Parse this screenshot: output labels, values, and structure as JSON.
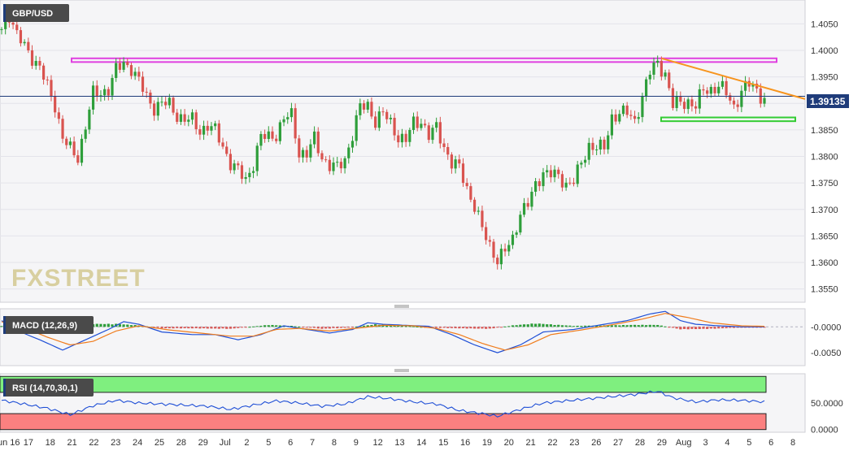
{
  "symbol": "GBP/USD",
  "last_price_label": "1.39135",
  "watermark": "FXSTREET",
  "colors": {
    "up": "#2e9e3a",
    "down": "#d9534f",
    "last_line": "#1f3c7a",
    "resistance_box": "#e040e0",
    "support_box": "#33cc33",
    "trendline": "#f7941d",
    "macd_line": "#1f4fd6",
    "signal_line": "#f07c1c",
    "rsi_line": "#1f4fd6",
    "rsi_overbought": "#7fef7f",
    "rsi_oversold": "#fb8080",
    "panel_bg": "#f5f5f7",
    "grid": "#e4e4ea"
  },
  "chart_data": [
    {
      "type": "candlestick",
      "title": "GBP/USD",
      "ylim": [
        1.3525,
        1.4095
      ],
      "y_ticks": [
        "1.4050",
        "1.4000",
        "1.3950",
        "1.3900",
        "1.3850",
        "1.3800",
        "1.3750",
        "1.3700",
        "1.3650",
        "1.3600",
        "1.3550"
      ],
      "x_ticks": [
        "Jun 16",
        "17",
        "18",
        "21",
        "22",
        "23",
        "24",
        "25",
        "28",
        "29",
        "Jul",
        "2",
        "5",
        "6",
        "7",
        "8",
        "9",
        "12",
        "13",
        "14",
        "15",
        "16",
        "19",
        "20",
        "21",
        "22",
        "23",
        "26",
        "27",
        "28",
        "29",
        "Aug",
        "3",
        "4",
        "5",
        "6",
        "8"
      ],
      "close_path": [
        [
          0,
          1.404
        ],
        [
          2,
          1.407
        ],
        [
          4,
          1.4025
        ],
        [
          6,
          1.4008
        ],
        [
          8,
          1.399
        ],
        [
          10,
          1.3965
        ],
        [
          12,
          1.393
        ],
        [
          14,
          1.39
        ],
        [
          16,
          1.3835
        ],
        [
          18,
          1.381
        ],
        [
          20,
          1.38
        ],
        [
          22,
          1.386
        ],
        [
          24,
          1.3915
        ],
        [
          26,
          1.392
        ],
        [
          28,
          1.393
        ],
        [
          30,
          1.396
        ],
        [
          32,
          1.3975
        ],
        [
          34,
          1.397
        ],
        [
          36,
          1.394
        ],
        [
          38,
          1.391
        ],
        [
          40,
          1.3895
        ],
        [
          42,
          1.39
        ],
        [
          44,
          1.3895
        ],
        [
          46,
          1.388
        ],
        [
          48,
          1.387
        ],
        [
          50,
          1.3865
        ],
        [
          52,
          1.385
        ],
        [
          54,
          1.386
        ],
        [
          56,
          1.3845
        ],
        [
          58,
          1.382
        ],
        [
          60,
          1.379
        ],
        [
          62,
          1.377
        ],
        [
          64,
          1.3755
        ],
        [
          66,
          1.379
        ],
        [
          68,
          1.3835
        ],
        [
          70,
          1.3835
        ],
        [
          72,
          1.3845
        ],
        [
          74,
          1.387
        ],
        [
          76,
          1.3875
        ],
        [
          78,
          1.381
        ],
        [
          80,
          1.3805
        ],
        [
          82,
          1.383
        ],
        [
          84,
          1.38
        ],
        [
          86,
          1.3785
        ],
        [
          88,
          1.3775
        ],
        [
          90,
          1.3795
        ],
        [
          92,
          1.3845
        ],
        [
          94,
          1.389
        ],
        [
          96,
          1.3895
        ],
        [
          98,
          1.387
        ],
        [
          100,
          1.388
        ],
        [
          102,
          1.386
        ],
        [
          104,
          1.384
        ],
        [
          106,
          1.383
        ],
        [
          108,
          1.386
        ],
        [
          110,
          1.387
        ],
        [
          112,
          1.384
        ],
        [
          114,
          1.385
        ],
        [
          116,
          1.382
        ],
        [
          118,
          1.379
        ],
        [
          120,
          1.3775
        ],
        [
          122,
          1.374
        ],
        [
          124,
          1.371
        ],
        [
          126,
          1.366
        ],
        [
          128,
          1.363
        ],
        [
          130,
          1.361
        ],
        [
          132,
          1.362
        ],
        [
          134,
          1.364
        ],
        [
          136,
          1.37
        ],
        [
          138,
          1.371
        ],
        [
          140,
          1.374
        ],
        [
          142,
          1.3775
        ],
        [
          144,
          1.377
        ],
        [
          146,
          1.3755
        ],
        [
          148,
          1.375
        ],
        [
          150,
          1.376
        ],
        [
          152,
          1.378
        ],
        [
          154,
          1.382
        ],
        [
          156,
          1.3825
        ],
        [
          158,
          1.381
        ],
        [
          160,
          1.387
        ],
        [
          162,
          1.389
        ],
        [
          164,
          1.388
        ],
        [
          166,
          1.386
        ],
        [
          168,
          1.392
        ],
        [
          170,
          1.396
        ],
        [
          172,
          1.397
        ],
        [
          174,
          1.396
        ],
        [
          176,
          1.39
        ],
        [
          178,
          1.3895
        ],
        [
          180,
          1.3905
        ],
        [
          182,
          1.39
        ],
        [
          184,
          1.392
        ],
        [
          186,
          1.3925
        ],
        [
          188,
          1.394
        ],
        [
          190,
          1.3915
        ],
        [
          192,
          1.389
        ],
        [
          194,
          1.393
        ],
        [
          196,
          1.3935
        ],
        [
          198,
          1.392
        ],
        [
          200,
          1.3913
        ]
      ],
      "last_price": 1.39135,
      "resistance_zone": [
        1.3978,
        1.3985
      ],
      "support_zone": [
        1.3868,
        1.3872
      ],
      "descending_trendline": [
        [
          173,
          1.3985
        ],
        [
          200,
          1.393
        ]
      ]
    },
    {
      "type": "line",
      "title": "MACD (12,26,9)",
      "ylim": [
        -0.0075,
        0.0035
      ],
      "y_ticks": [
        "-0.0000",
        "-0.0050"
      ],
      "series": [
        {
          "name": "MACD",
          "values": [
            [
              0,
              0.0012
            ],
            [
              5,
              -0.001
            ],
            [
              10,
              -0.0025
            ],
            [
              16,
              -0.0045
            ],
            [
              22,
              -0.0025
            ],
            [
              28,
              -0.0005
            ],
            [
              32,
              0.001
            ],
            [
              36,
              0.0005
            ],
            [
              42,
              -0.001
            ],
            [
              50,
              -0.0015
            ],
            [
              56,
              -0.0015
            ],
            [
              62,
              -0.0025
            ],
            [
              68,
              -0.0015
            ],
            [
              74,
              0.0002
            ],
            [
              80,
              -0.0005
            ],
            [
              86,
              -0.0012
            ],
            [
              92,
              -0.0005
            ],
            [
              96,
              0.0008
            ],
            [
              100,
              0.0005
            ],
            [
              106,
              0.0003
            ],
            [
              112,
              0.0001
            ],
            [
              118,
              -0.0015
            ],
            [
              124,
              -0.0035
            ],
            [
              130,
              -0.005
            ],
            [
              136,
              -0.0035
            ],
            [
              142,
              -0.001
            ],
            [
              150,
              -0.0005
            ],
            [
              158,
              0.0005
            ],
            [
              164,
              0.0012
            ],
            [
              170,
              0.0025
            ],
            [
              174,
              0.003
            ],
            [
              178,
              0.0012
            ],
            [
              182,
              0.0005
            ],
            [
              188,
              0.0002
            ],
            [
              194,
              0.0
            ],
            [
              200,
              0.0
            ]
          ]
        },
        {
          "name": "Signal",
          "values": [
            [
              0,
              0.001
            ],
            [
              6,
              -0.0002
            ],
            [
              12,
              -0.002
            ],
            [
              18,
              -0.0035
            ],
            [
              24,
              -0.0028
            ],
            [
              30,
              -0.0008
            ],
            [
              36,
              0.0002
            ],
            [
              44,
              -0.0006
            ],
            [
              52,
              -0.0012
            ],
            [
              60,
              -0.0018
            ],
            [
              66,
              -0.0018
            ],
            [
              72,
              -0.0005
            ],
            [
              78,
              -0.0003
            ],
            [
              86,
              -0.0008
            ],
            [
              94,
              -0.0002
            ],
            [
              100,
              0.0003
            ],
            [
              108,
              0.0002
            ],
            [
              114,
              -0.0003
            ],
            [
              120,
              -0.0015
            ],
            [
              126,
              -0.0032
            ],
            [
              132,
              -0.0045
            ],
            [
              138,
              -0.0035
            ],
            [
              144,
              -0.0015
            ],
            [
              152,
              -0.0006
            ],
            [
              160,
              0.0004
            ],
            [
              168,
              0.0015
            ],
            [
              174,
              0.0026
            ],
            [
              180,
              0.0018
            ],
            [
              186,
              0.0008
            ],
            [
              194,
              0.0002
            ],
            [
              200,
              0.0001
            ]
          ]
        }
      ],
      "histogram": [
        [
          0,
          0.0002
        ],
        [
          10,
          -0.0005
        ],
        [
          18,
          -0.0003
        ],
        [
          24,
          0.0006
        ],
        [
          30,
          0.0006
        ],
        [
          36,
          0.0003
        ],
        [
          42,
          -0.0003
        ],
        [
          50,
          -0.0003
        ],
        [
          60,
          -0.0004
        ],
        [
          70,
          0.0004
        ],
        [
          76,
          0.0002
        ],
        [
          84,
          -0.0004
        ],
        [
          90,
          -0.0002
        ],
        [
          98,
          0.0005
        ],
        [
          106,
          0.0002
        ],
        [
          114,
          -0.0002
        ],
        [
          120,
          -0.0003
        ],
        [
          128,
          -0.0004
        ],
        [
          134,
          0.0003
        ],
        [
          140,
          0.0007
        ],
        [
          150,
          0.0002
        ],
        [
          158,
          0.0003
        ],
        [
          166,
          0.0004
        ],
        [
          172,
          0.0004
        ],
        [
          178,
          -0.0005
        ],
        [
          186,
          -0.0004
        ],
        [
          192,
          -0.0002
        ],
        [
          198,
          -0.0001
        ],
        [
          200,
          -0.0001
        ]
      ]
    },
    {
      "type": "line",
      "title": "RSI (14,70,30,1)",
      "ylim": [
        -5,
        105
      ],
      "y_ticks": [
        "50.0000",
        "0.0000"
      ],
      "overbought": 70,
      "oversold": 30,
      "series": [
        {
          "name": "RSI",
          "values": [
            [
              0,
              55
            ],
            [
              6,
              48
            ],
            [
              12,
              40
            ],
            [
              18,
              28
            ],
            [
              24,
              45
            ],
            [
              30,
              55
            ],
            [
              36,
              50
            ],
            [
              42,
              48
            ],
            [
              48,
              46
            ],
            [
              54,
              44
            ],
            [
              60,
              38
            ],
            [
              66,
              46
            ],
            [
              72,
              54
            ],
            [
              78,
              50
            ],
            [
              84,
              44
            ],
            [
              90,
              48
            ],
            [
              96,
              62
            ],
            [
              102,
              58
            ],
            [
              108,
              52
            ],
            [
              114,
              48
            ],
            [
              120,
              36
            ],
            [
              126,
              30
            ],
            [
              130,
              25
            ],
            [
              136,
              38
            ],
            [
              142,
              50
            ],
            [
              148,
              54
            ],
            [
              154,
              58
            ],
            [
              160,
              62
            ],
            [
              166,
              66
            ],
            [
              172,
              72
            ],
            [
              176,
              60
            ],
            [
              182,
              52
            ],
            [
              188,
              56
            ],
            [
              194,
              55
            ],
            [
              200,
              52
            ]
          ]
        }
      ]
    }
  ]
}
